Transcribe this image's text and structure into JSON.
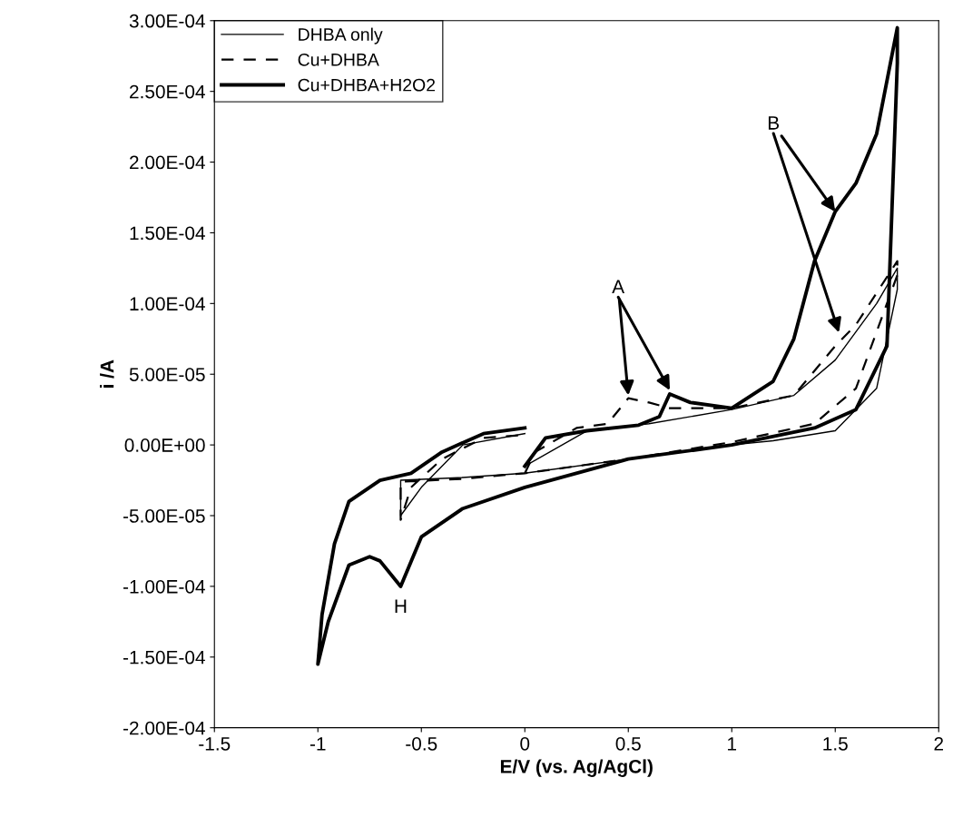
{
  "chart_data": {
    "type": "line",
    "xlabel": "E/V (vs. Ag/AgCl)",
    "ylabel": "i /A",
    "xlim": [
      -1.5,
      2
    ],
    "xticks": [
      -1.5,
      -1,
      -0.5,
      0,
      0.5,
      1,
      1.5,
      2
    ],
    "ylim": [
      -0.0002,
      0.0003
    ],
    "yticks": [
      {
        "value": -0.0002,
        "label": "-2.00E-04"
      },
      {
        "value": -0.00015,
        "label": "-1.50E-04"
      },
      {
        "value": -0.0001,
        "label": "-1.00E-04"
      },
      {
        "value": -5e-05,
        "label": "-5.00E-05"
      },
      {
        "value": 0,
        "label": "0.00E+00"
      },
      {
        "value": 5e-05,
        "label": "5.00E-05"
      },
      {
        "value": 0.0001,
        "label": "1.00E-04"
      },
      {
        "value": 0.00015,
        "label": "1.50E-04"
      },
      {
        "value": 0.0002,
        "label": "2.00E-04"
      },
      {
        "value": 0.00025,
        "label": "2.50E-04"
      },
      {
        "value": 0.0003,
        "label": "3.00E-04"
      }
    ],
    "grid": false,
    "legend": "top left",
    "marker": "none",
    "series": [
      {
        "name": "DHBA only",
        "color": "#000000",
        "line_style": "solid",
        "x": [
          0,
          0.3,
          0.6,
          1.0,
          1.3,
          1.5,
          1.7,
          1.8,
          1.8,
          1.7,
          1.5,
          1.2,
          1.0,
          0.5,
          0.0,
          -0.3,
          -0.6,
          -0.6,
          -0.5,
          -0.3,
          0.0
        ],
        "values": [
          -1.5e-05,
          1e-05,
          1.5e-05,
          2.5e-05,
          3.5e-05,
          6e-05,
          0.0001,
          0.000125,
          0.00011,
          4e-05,
          1e-05,
          3e-06,
          0,
          -1e-05,
          -2e-05,
          -2.3e-05,
          -2.5e-05,
          -5e-05,
          -3e-05,
          0,
          8e-06
        ]
      },
      {
        "name": "Cu+DHBA",
        "color": "#000000",
        "line_style": "dashed",
        "x": [
          0,
          0.05,
          0.25,
          0.4,
          0.5,
          0.6,
          0.7,
          1.0,
          1.3,
          1.5,
          1.6,
          1.8,
          1.8,
          1.6,
          1.4,
          1.0,
          0.5,
          0,
          -0.3,
          -0.6,
          -0.6,
          -0.55,
          -0.4,
          -0.2,
          0
        ],
        "values": [
          -2e-05,
          -5e-06,
          1.2e-05,
          1.5e-05,
          3.3e-05,
          3e-05,
          2.6e-05,
          2.6e-05,
          3.5e-05,
          7e-05,
          8.5e-05,
          0.00013,
          0.00012,
          4e-05,
          1.5e-05,
          2e-06,
          -1e-05,
          -2e-05,
          -2.4e-05,
          -2.6e-05,
          -5.3e-05,
          -3e-05,
          -1e-05,
          5e-06,
          7e-06
        ]
      },
      {
        "name": "Cu+DHBA+H2O2",
        "color": "#000000",
        "line_style": "solid",
        "x": [
          0.0,
          0.1,
          0.3,
          0.55,
          0.65,
          0.7,
          0.8,
          1.0,
          1.2,
          1.3,
          1.4,
          1.5,
          1.6,
          1.7,
          1.78,
          1.8,
          1.8,
          1.75,
          1.6,
          1.4,
          1.0,
          0.5,
          0.0,
          -0.3,
          -0.5,
          -0.6,
          -0.7,
          -0.75,
          -0.85,
          -0.95,
          -1.0,
          -0.98,
          -0.92,
          -0.85,
          -0.7,
          -0.55,
          -0.4,
          -0.2,
          0.0
        ],
        "values": [
          -1.5e-05,
          5e-06,
          1e-05,
          1.4e-05,
          2e-05,
          3.6e-05,
          3e-05,
          2.6e-05,
          4.5e-05,
          7.5e-05,
          0.00013,
          0.000165,
          0.000185,
          0.00022,
          0.00028,
          0.000295,
          0.00027,
          7e-05,
          2.5e-05,
          1.2e-05,
          0,
          -1e-05,
          -3e-05,
          -4.5e-05,
          -6.5e-05,
          -0.0001,
          -8.2e-05,
          -7.9e-05,
          -8.5e-05,
          -0.000125,
          -0.000155,
          -0.00012,
          -7e-05,
          -4e-05,
          -2.5e-05,
          -2e-05,
          -5e-06,
          8e-06,
          1.2e-05
        ]
      }
    ],
    "annotations": [
      {
        "text": "A",
        "x": 0.5,
        "y": 3.5e-05
      },
      {
        "text": "B",
        "x": 1.5,
        "y": 0.000165
      },
      {
        "text": "H",
        "x": -0.6,
        "y": -0.0001
      }
    ]
  }
}
